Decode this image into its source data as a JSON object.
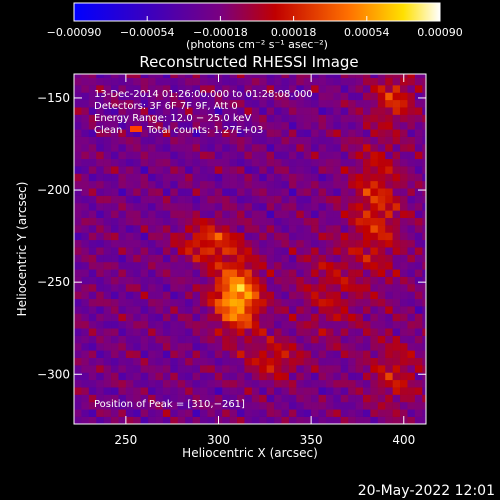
{
  "chart_data": {
    "type": "heatmap",
    "title": "Reconstructed RHESSI Image",
    "xlabel": "Heliocentric X (arcsec)",
    "ylabel": "Heliocentric Y (arcsec)",
    "xlim": [
      222,
      412
    ],
    "ylim": [
      -327,
      -137
    ],
    "x_ticks": [
      250,
      300,
      350,
      400
    ],
    "y_ticks": [
      -150,
      -200,
      -250,
      -300
    ],
    "x_tick_labels": [
      "250",
      "300",
      "350",
      "400"
    ],
    "y_tick_labels": [
      "−150",
      "−200",
      "−250",
      "−300"
    ],
    "colorbar": {
      "range": [
        -0.0009,
        0.0009
      ],
      "tick_values": [
        -0.0009,
        -0.00054,
        -0.00018,
        0.00018,
        0.00054,
        0.0009
      ],
      "tick_labels": [
        "−0.00090",
        "−0.00054",
        "−0.00018",
        "0.00018",
        "0.00054",
        "0.00090"
      ],
      "unit_label": "(photons cm⁻² s⁻¹ asec⁻²)"
    },
    "peak": {
      "x": 310,
      "y": -261
    },
    "annotations": {
      "time": "13‐Dec‐2014 01:26:00.000 to 01:28:08.000",
      "detectors": "Detectors: 3F 6F 7F 9F, Att 0",
      "energy": "Energy Range: 12.0 − 25.0 keV",
      "clean": "Clean",
      "counts": "Total counts: 1.27E+03",
      "peak": "Position of Peak = [310,−261]"
    },
    "footer": "20‐May‐2022 12:01",
    "sources": [
      {
        "x": 310,
        "y": -258,
        "amp": 0.00085,
        "sx": 9,
        "sy": 13
      },
      {
        "x": 295,
        "y": -228,
        "amp": 0.00045,
        "sx": 12,
        "sy": 8
      },
      {
        "x": 330,
        "y": -292,
        "amp": 0.00035,
        "sx": 10,
        "sy": 8
      },
      {
        "x": 385,
        "y": -210,
        "amp": 0.0004,
        "sx": 10,
        "sy": 26
      },
      {
        "x": 395,
        "y": -150,
        "amp": 0.00038,
        "sx": 8,
        "sy": 10
      },
      {
        "x": 395,
        "y": -300,
        "amp": 0.0003,
        "sx": 10,
        "sy": 14
      },
      {
        "x": 360,
        "y": -255,
        "amp": 0.00025,
        "sx": 12,
        "sy": 18
      }
    ]
  },
  "colors": {
    "background": "#000000",
    "colormap": [
      "#0000ff",
      "#4b0082",
      "#800080",
      "#cc0000",
      "#ff8000",
      "#ffff00",
      "#ffffff"
    ]
  }
}
